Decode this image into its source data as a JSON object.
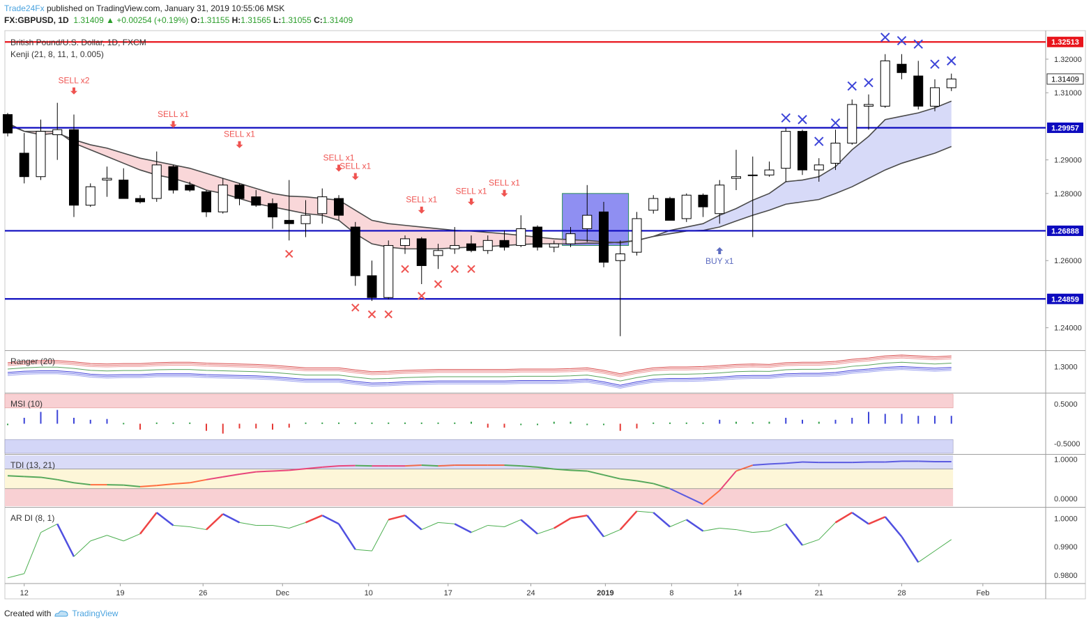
{
  "header": {
    "brand": "Trade24Fx",
    "published": "published on TradingView.com, January 31, 2019 10:55:06 MSK",
    "symbol": "FX:GBPUSD, 1D",
    "last": "1.31409",
    "change": "+0.00254 (+0.19%)",
    "o_label": "O:",
    "o": "1.31155",
    "h_label": "H:",
    "h": "1.31565",
    "l_label": "L:",
    "l": "1.31055",
    "c_label": "C:",
    "c": "1.31409"
  },
  "footer": {
    "created": "Created with",
    "brand": "TradingView"
  },
  "colors": {
    "bull_candle": "#ffffff",
    "bear_candle": "#000000",
    "red_line": "#e8141b",
    "blue_line": "#0d0bbf",
    "sell": "#ef5350",
    "buy": "#5c6bc0",
    "cross_blue": "#3c44d8"
  },
  "chart_data": [
    {
      "type": "candlestick",
      "title": "British Pound/U.S. Dollar, 1D, FXCM",
      "indicator": "Kenji (21, 8, 11, 1, 0.005)",
      "ylim": [
        1.2335,
        1.3285
      ],
      "y_ticks": [
        "1.32000",
        "1.31000",
        "1.29000",
        "1.28000",
        "1.26000",
        "1.24000"
      ],
      "x_ticks": [
        "12",
        "19",
        "26",
        "Dec",
        "10",
        "17",
        "24",
        "2019",
        "8",
        "14",
        "21",
        "28",
        "Feb"
      ],
      "horizontal_levels": [
        {
          "value": 1.32513,
          "label": "1.32513",
          "color": "#e8141b"
        },
        {
          "value": 1.29957,
          "label": "1.29957",
          "color": "#0d0bbf"
        },
        {
          "value": 1.26888,
          "label": "1.26888",
          "color": "#0d0bbf"
        },
        {
          "value": 1.24859,
          "label": "1.24859",
          "color": "#0d0bbf"
        }
      ],
      "last_price_label": "1.31409",
      "candles": [
        {
          "o": 1.3035,
          "h": 1.304,
          "l": 1.297,
          "c": 1.298
        },
        {
          "o": 1.292,
          "h": 1.298,
          "l": 1.283,
          "c": 1.285
        },
        {
          "o": 1.285,
          "h": 1.302,
          "l": 1.284,
          "c": 1.2985
        },
        {
          "o": 1.2975,
          "h": 1.307,
          "l": 1.29,
          "c": 1.299
        },
        {
          "o": 1.299,
          "h": 1.3035,
          "l": 1.273,
          "c": 1.2765
        },
        {
          "o": 1.2765,
          "h": 1.283,
          "l": 1.276,
          "c": 1.282
        },
        {
          "o": 1.284,
          "h": 1.288,
          "l": 1.279,
          "c": 1.2845
        },
        {
          "o": 1.284,
          "h": 1.2875,
          "l": 1.2785,
          "c": 1.2785
        },
        {
          "o": 1.2785,
          "h": 1.2795,
          "l": 1.277,
          "c": 1.2775
        },
        {
          "o": 1.2785,
          "h": 1.2925,
          "l": 1.2775,
          "c": 1.2885
        },
        {
          "o": 1.288,
          "h": 1.2885,
          "l": 1.28,
          "c": 1.281
        },
        {
          "o": 1.2825,
          "h": 1.2835,
          "l": 1.2805,
          "c": 1.281
        },
        {
          "o": 1.2805,
          "h": 1.281,
          "l": 1.273,
          "c": 1.2745
        },
        {
          "o": 1.2745,
          "h": 1.2845,
          "l": 1.274,
          "c": 1.2825
        },
        {
          "o": 1.2825,
          "h": 1.283,
          "l": 1.2765,
          "c": 1.2785
        },
        {
          "o": 1.279,
          "h": 1.281,
          "l": 1.276,
          "c": 1.2765
        },
        {
          "o": 1.277,
          "h": 1.2785,
          "l": 1.2695,
          "c": 1.273
        },
        {
          "o": 1.272,
          "h": 1.284,
          "l": 1.266,
          "c": 1.271
        },
        {
          "o": 1.271,
          "h": 1.278,
          "l": 1.267,
          "c": 1.2735
        },
        {
          "o": 1.274,
          "h": 1.2815,
          "l": 1.271,
          "c": 1.279
        },
        {
          "o": 1.2785,
          "h": 1.2795,
          "l": 1.272,
          "c": 1.2735
        },
        {
          "o": 1.27,
          "h": 1.2715,
          "l": 1.2525,
          "c": 1.2555
        },
        {
          "o": 1.2555,
          "h": 1.26,
          "l": 1.248,
          "c": 1.249
        },
        {
          "o": 1.249,
          "h": 1.266,
          "l": 1.2485,
          "c": 1.2645
        },
        {
          "o": 1.2645,
          "h": 1.2675,
          "l": 1.262,
          "c": 1.2665
        },
        {
          "o": 1.2665,
          "h": 1.267,
          "l": 1.253,
          "c": 1.2585
        },
        {
          "o": 1.2615,
          "h": 1.265,
          "l": 1.2575,
          "c": 1.263
        },
        {
          "o": 1.2635,
          "h": 1.27,
          "l": 1.262,
          "c": 1.2645
        },
        {
          "o": 1.265,
          "h": 1.2675,
          "l": 1.2625,
          "c": 1.263
        },
        {
          "o": 1.263,
          "h": 1.2675,
          "l": 1.262,
          "c": 1.266
        },
        {
          "o": 1.266,
          "h": 1.269,
          "l": 1.263,
          "c": 1.264
        },
        {
          "o": 1.2645,
          "h": 1.2735,
          "l": 1.264,
          "c": 1.2695
        },
        {
          "o": 1.27,
          "h": 1.2705,
          "l": 1.263,
          "c": 1.264
        },
        {
          "o": 1.264,
          "h": 1.266,
          "l": 1.2625,
          "c": 1.265
        },
        {
          "o": 1.265,
          "h": 1.27,
          "l": 1.264,
          "c": 1.268
        },
        {
          "o": 1.2695,
          "h": 1.2825,
          "l": 1.2655,
          "c": 1.2735
        },
        {
          "o": 1.2745,
          "h": 1.2775,
          "l": 1.258,
          "c": 1.2595
        },
        {
          "o": 1.26,
          "h": 1.266,
          "l": 1.2375,
          "c": 1.262
        },
        {
          "o": 1.2625,
          "h": 1.2745,
          "l": 1.2615,
          "c": 1.2725
        },
        {
          "o": 1.275,
          "h": 1.2795,
          "l": 1.274,
          "c": 1.2785
        },
        {
          "o": 1.2785,
          "h": 1.279,
          "l": 1.272,
          "c": 1.272
        },
        {
          "o": 1.2725,
          "h": 1.28,
          "l": 1.2715,
          "c": 1.2795
        },
        {
          "o": 1.2795,
          "h": 1.28,
          "l": 1.273,
          "c": 1.276
        },
        {
          "o": 1.274,
          "h": 1.284,
          "l": 1.271,
          "c": 1.2825
        },
        {
          "o": 1.2845,
          "h": 1.293,
          "l": 1.281,
          "c": 1.285
        },
        {
          "o": 1.2855,
          "h": 1.291,
          "l": 1.267,
          "c": 1.2855
        },
        {
          "o": 1.2855,
          "h": 1.2895,
          "l": 1.285,
          "c": 1.287
        },
        {
          "o": 1.2875,
          "h": 1.2995,
          "l": 1.2835,
          "c": 1.2985
        },
        {
          "o": 1.2985,
          "h": 1.299,
          "l": 1.2855,
          "c": 1.287
        },
        {
          "o": 1.287,
          "h": 1.2905,
          "l": 1.2835,
          "c": 1.2885
        },
        {
          "o": 1.289,
          "h": 1.299,
          "l": 1.287,
          "c": 1.295
        },
        {
          "o": 1.295,
          "h": 1.308,
          "l": 1.2945,
          "c": 1.3065
        },
        {
          "o": 1.306,
          "h": 1.3095,
          "l": 1.299,
          "c": 1.3065
        },
        {
          "o": 1.306,
          "h": 1.3215,
          "l": 1.3055,
          "c": 1.3195
        },
        {
          "o": 1.3185,
          "h": 1.3215,
          "l": 1.314,
          "c": 1.316
        },
        {
          "o": 1.315,
          "h": 1.3195,
          "l": 1.305,
          "c": 1.306
        },
        {
          "o": 1.306,
          "h": 1.314,
          "l": 1.3045,
          "c": 1.3115
        },
        {
          "o": 1.3115,
          "h": 1.3157,
          "l": 1.3105,
          "c": 1.3141
        }
      ],
      "kenji_upper": [
        1.301,
        1.2985,
        1.2975,
        1.298,
        1.296,
        1.2945,
        1.2935,
        1.292,
        1.2905,
        1.2895,
        1.2885,
        1.2875,
        1.286,
        1.2845,
        1.283,
        1.2815,
        1.28,
        1.2792,
        1.279,
        1.2785,
        1.278,
        1.275,
        1.272,
        1.271,
        1.2705,
        1.27,
        1.2695,
        1.269,
        1.2688,
        1.2684,
        1.268,
        1.2675,
        1.267,
        1.2665,
        1.2662,
        1.266,
        1.2656,
        1.2653,
        1.266,
        1.2672,
        1.269,
        1.27,
        1.271,
        1.2735,
        1.2755,
        1.278,
        1.28,
        1.2835,
        1.284,
        1.285,
        1.288,
        1.293,
        1.297,
        1.302,
        1.303,
        1.304,
        1.3055,
        1.3075
      ],
      "kenji_lower": [
        1.3005,
        1.2985,
        1.2985,
        1.2985,
        1.295,
        1.293,
        1.291,
        1.289,
        1.287,
        1.2855,
        1.2845,
        1.283,
        1.281,
        1.28,
        1.2785,
        1.277,
        1.276,
        1.275,
        1.274,
        1.2735,
        1.272,
        1.268,
        1.265,
        1.264,
        1.2635,
        1.2635,
        1.2635,
        1.2638,
        1.264,
        1.2642,
        1.2645,
        1.2648,
        1.265,
        1.265,
        1.265,
        1.2652,
        1.2652,
        1.2655,
        1.266,
        1.2672,
        1.268,
        1.2688,
        1.269,
        1.27,
        1.2718,
        1.2735,
        1.275,
        1.2768,
        1.2775,
        1.2782,
        1.28,
        1.282,
        1.2845,
        1.287,
        1.289,
        1.2905,
        1.292,
        1.294
      ],
      "annotations": [
        {
          "idx": 4,
          "text": "SELL x2",
          "dir": "sell",
          "price": 1.3095
        },
        {
          "idx": 10,
          "text": "SELL x1",
          "dir": "sell",
          "price": 1.2995
        },
        {
          "idx": 14,
          "text": "SELL x1",
          "dir": "sell",
          "price": 1.2935
        },
        {
          "idx": 20,
          "text": "SELL x1",
          "dir": "sell",
          "price": 1.2865
        },
        {
          "idx": 21,
          "text": "SELL x1",
          "dir": "sell",
          "price": 1.284
        },
        {
          "idx": 25,
          "text": "SELL x1",
          "dir": "sell",
          "price": 1.274
        },
        {
          "idx": 28,
          "text": "SELL x1",
          "dir": "sell",
          "price": 1.2765
        },
        {
          "idx": 30,
          "text": "SELL x1",
          "dir": "sell",
          "price": 1.279
        },
        {
          "idx": 43,
          "text": "BUY x1",
          "dir": "buy",
          "price": 1.264
        }
      ],
      "red_crosses": [
        [
          17,
          1.262
        ],
        [
          21,
          1.246
        ],
        [
          22,
          1.244
        ],
        [
          23,
          1.244
        ],
        [
          24,
          1.2575
        ],
        [
          25,
          1.2495
        ],
        [
          26,
          1.253
        ],
        [
          27,
          1.2575
        ],
        [
          28,
          1.2575
        ]
      ],
      "blue_crosses": [
        [
          47,
          1.3025
        ],
        [
          48,
          1.302
        ],
        [
          49,
          1.2955
        ],
        [
          50,
          1.301
        ],
        [
          51,
          1.312
        ],
        [
          52,
          1.313
        ],
        [
          53,
          1.3265
        ],
        [
          54,
          1.3255
        ],
        [
          55,
          1.3245
        ],
        [
          56,
          1.3185
        ],
        [
          57,
          1.3195
        ]
      ]
    },
    {
      "type": "line",
      "indicator": "Ranger (20)",
      "ylim": [
        1.24,
        1.335
      ],
      "y_ticks": [
        "1.3000"
      ],
      "series_upper": [
        1.302,
        1.305,
        1.307,
        1.307,
        1.304,
        1.3,
        1.299,
        1.3,
        1.3,
        1.302,
        1.303,
        1.303,
        1.301,
        1.3,
        1.299,
        1.298,
        1.296,
        1.293,
        1.29,
        1.29,
        1.29,
        1.285,
        1.281,
        1.282,
        1.284,
        1.285,
        1.286,
        1.286,
        1.286,
        1.286,
        1.286,
        1.287,
        1.287,
        1.287,
        1.288,
        1.29,
        1.284,
        1.276,
        1.284,
        1.29,
        1.292,
        1.292,
        1.293,
        1.295,
        1.298,
        1.299,
        1.298,
        1.302,
        1.303,
        1.303,
        1.305,
        1.31,
        1.313,
        1.318,
        1.32,
        1.318,
        1.316,
        1.318
      ],
      "series_lower": [
        1.286,
        1.289,
        1.29,
        1.29,
        1.287,
        1.282,
        1.28,
        1.281,
        1.281,
        1.283,
        1.283,
        1.283,
        1.281,
        1.28,
        1.279,
        1.278,
        1.276,
        1.273,
        1.27,
        1.27,
        1.27,
        1.265,
        1.261,
        1.262,
        1.264,
        1.265,
        1.266,
        1.266,
        1.266,
        1.266,
        1.266,
        1.267,
        1.267,
        1.267,
        1.268,
        1.27,
        1.264,
        1.256,
        1.264,
        1.27,
        1.272,
        1.272,
        1.273,
        1.275,
        1.278,
        1.279,
        1.279,
        1.283,
        1.284,
        1.284,
        1.286,
        1.291,
        1.294,
        1.298,
        1.3,
        1.298,
        1.296,
        1.298
      ]
    },
    {
      "type": "bar",
      "indicator": "MSI (10)",
      "ylim": [
        -0.75,
        0.75
      ],
      "y_ticks": [
        "0.5000",
        "-0.5000"
      ],
      "values": [
        0.0,
        0.15,
        0.3,
        0.35,
        0.15,
        0.1,
        0.12,
        0.02,
        -0.15,
        0.03,
        0.03,
        0.03,
        -0.18,
        -0.25,
        -0.12,
        -0.12,
        -0.15,
        -0.1,
        0.03,
        0.03,
        0.03,
        0.03,
        0.03,
        0.03,
        0.03,
        0.03,
        0.03,
        0.03,
        0.05,
        -0.1,
        -0.1,
        0.0,
        0.0,
        0.05,
        0.05,
        0.0,
        0.0,
        -0.18,
        -0.12,
        0.03,
        0.03,
        0.03,
        0.03,
        0.1,
        0.05,
        0.04,
        0.05,
        0.15,
        0.1,
        0.05,
        0.1,
        0.15,
        0.3,
        0.25,
        0.25,
        0.2,
        0.2,
        0.2
      ]
    },
    {
      "type": "line",
      "indicator": "TDI (13, 21)",
      "ylim": [
        -0.2,
        1.1
      ],
      "y_ticks": [
        "1.0000",
        "0.0000"
      ],
      "values": [
        0.58,
        0.56,
        0.54,
        0.48,
        0.4,
        0.35,
        0.35,
        0.34,
        0.3,
        0.33,
        0.37,
        0.4,
        0.48,
        0.55,
        0.62,
        0.68,
        0.7,
        0.72,
        0.76,
        0.8,
        0.83,
        0.84,
        0.83,
        0.83,
        0.83,
        0.85,
        0.83,
        0.85,
        0.85,
        0.85,
        0.85,
        0.83,
        0.8,
        0.75,
        0.72,
        0.7,
        0.6,
        0.5,
        0.45,
        0.38,
        0.25,
        0.05,
        -0.15,
        0.2,
        0.7,
        0.85,
        0.88,
        0.9,
        0.93,
        0.92,
        0.92,
        0.92,
        0.93,
        0.93,
        0.95,
        0.95,
        0.94,
        0.94
      ]
    },
    {
      "type": "line",
      "indicator": "AR DI (8, 1)",
      "ylim": [
        0.977,
        1.0035
      ],
      "y_ticks": [
        "1.0000",
        "0.9900",
        "0.9800"
      ],
      "values": [
        0.979,
        0.9805,
        0.995,
        0.998,
        0.9865,
        0.992,
        0.994,
        0.992,
        0.9945,
        1.002,
        0.9975,
        0.997,
        0.996,
        1.0015,
        0.9985,
        0.9975,
        0.9975,
        0.9965,
        0.9985,
        1.001,
        0.998,
        0.989,
        0.9885,
        0.9995,
        1.001,
        0.996,
        0.9985,
        0.998,
        0.995,
        0.9975,
        0.997,
        0.9995,
        0.9945,
        0.9965,
        1.0,
        1.001,
        0.9935,
        0.996,
        1.0025,
        1.002,
        0.997,
        0.9995,
        0.9955,
        0.9965,
        0.996,
        0.995,
        0.9955,
        0.998,
        0.9905,
        0.9925,
        0.9985,
        1.002,
        0.998,
        1.0005,
        0.9935,
        0.9845,
        0.9885,
        0.9925
      ]
    }
  ]
}
